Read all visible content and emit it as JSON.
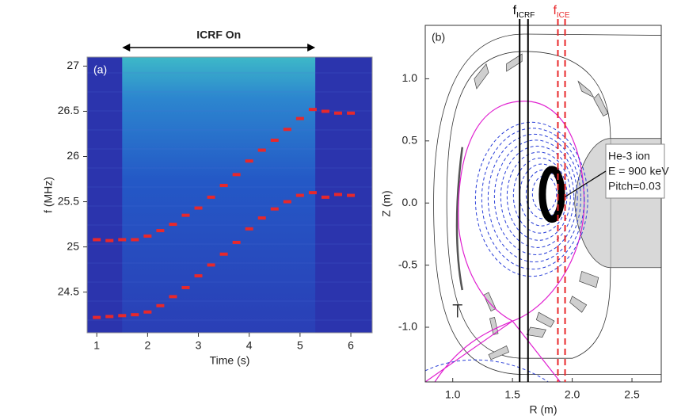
{
  "chart_data": [
    {
      "type": "spectrogram",
      "panel_label": "(a)",
      "annotation": "ICRF On",
      "span": [
        1.5,
        5.3
      ],
      "xlabel": "Time (s)",
      "ylabel": "f (MHz)",
      "x": [
        1.0,
        1.25,
        1.5,
        1.75,
        2.0,
        2.25,
        2.5,
        2.75,
        3.0,
        3.25,
        3.5,
        3.75,
        4.0,
        4.25,
        4.5,
        4.75,
        5.0,
        5.25,
        5.5,
        5.75,
        6.0
      ],
      "series": [
        {
          "color": "#e8282b",
          "values": [
            25.08,
            25.07,
            25.08,
            25.08,
            25.12,
            25.18,
            25.25,
            25.35,
            25.43,
            25.55,
            25.68,
            25.8,
            25.95,
            26.07,
            26.18,
            26.3,
            26.42,
            26.52,
            26.5,
            26.48,
            26.48
          ]
        },
        {
          "color": "#e8282b",
          "values": [
            24.22,
            24.23,
            24.24,
            24.25,
            24.28,
            24.35,
            24.45,
            24.55,
            24.68,
            24.8,
            24.92,
            25.05,
            25.2,
            25.32,
            25.42,
            25.5,
            25.57,
            25.6,
            25.55,
            25.58,
            25.57
          ]
        }
      ],
      "xlim": [
        0.81,
        6.42
      ],
      "ylim": [
        24.05,
        27.1
      ],
      "xticks": [
        1,
        2,
        3,
        4,
        5,
        6
      ],
      "yticks": [
        24.5,
        25,
        25.5,
        26,
        26.5,
        27
      ]
    },
    {
      "type": "equilibrium",
      "panel_label": "(b)",
      "xlabel": "R (m)",
      "ylabel": "Z (m)",
      "vlines": [
        {
          "symbol": "f",
          "subscript": "ICRF",
          "color": "#000000",
          "style": "solid",
          "x": [
            1.56,
            1.63
          ]
        },
        {
          "symbol": "f",
          "subscript": "ICE",
          "color": "#e8282b",
          "style": "dashed",
          "x": [
            1.88,
            1.94
          ]
        }
      ],
      "annotation": [
        "He-3 ion",
        "E = 900 keV",
        "Pitch=0.03"
      ],
      "xlim": [
        0.77,
        2.745
      ],
      "ylim": [
        -1.44,
        1.43
      ],
      "xticks": [
        {
          "value": 1,
          "label": "1.0"
        },
        1.5,
        {
          "value": 2,
          "label": "2.0"
        },
        2.5
      ],
      "yticks": [
        {
          "value": -1,
          "label": "-1.0"
        },
        -0.5,
        {
          "value": 0,
          "label": "0.0"
        },
        0.5,
        {
          "value": 1,
          "label": "1.0"
        }
      ]
    }
  ]
}
